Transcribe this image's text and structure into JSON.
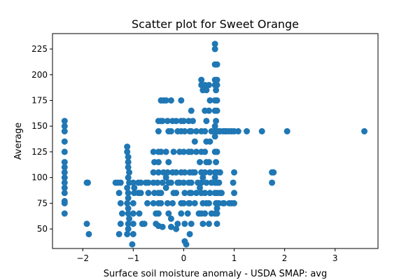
{
  "chart_data": {
    "type": "scatter",
    "title": "Scatter plot for Sweet Orange",
    "xlabel": "Surface soil moisture anomaly  - USDA SMAP: avg",
    "ylabel": "Average",
    "xlim": [
      -2.6,
      3.85
    ],
    "ylim": [
      31,
      240
    ],
    "xticks": [
      -2,
      -1,
      0,
      1,
      2,
      3
    ],
    "yticks": [
      50,
      75,
      100,
      125,
      150,
      175,
      200,
      225
    ],
    "grid": false,
    "marker_color": "#1f77b4",
    "points": [
      [
        -2.36,
        155
      ],
      [
        -2.36,
        150
      ],
      [
        -2.36,
        145
      ],
      [
        -2.36,
        135
      ],
      [
        -2.36,
        125
      ],
      [
        -2.36,
        115
      ],
      [
        -2.36,
        110
      ],
      [
        -2.36,
        105
      ],
      [
        -2.36,
        100
      ],
      [
        -2.36,
        95
      ],
      [
        -2.36,
        90
      ],
      [
        -2.36,
        85
      ],
      [
        -2.36,
        77
      ],
      [
        -2.36,
        75
      ],
      [
        -2.36,
        65
      ],
      [
        -1.92,
        95
      ],
      [
        -1.9,
        95
      ],
      [
        -1.92,
        55
      ],
      [
        -1.88,
        45
      ],
      [
        -1.35,
        95
      ],
      [
        -1.3,
        95
      ],
      [
        -1.25,
        95
      ],
      [
        -1.28,
        85
      ],
      [
        -1.25,
        75
      ],
      [
        -1.22,
        65
      ],
      [
        -1.25,
        55
      ],
      [
        -1.28,
        45
      ],
      [
        -1.12,
        130
      ],
      [
        -1.12,
        125
      ],
      [
        -1.1,
        120
      ],
      [
        -1.1,
        115
      ],
      [
        -1.1,
        110
      ],
      [
        -1.08,
        105
      ],
      [
        -1.1,
        100
      ],
      [
        -1.08,
        95
      ],
      [
        -1.12,
        90
      ],
      [
        -1.1,
        85
      ],
      [
        -1.1,
        80
      ],
      [
        -1.12,
        75
      ],
      [
        -1.1,
        70
      ],
      [
        -1.1,
        65
      ],
      [
        -1.08,
        60
      ],
      [
        -1.1,
        55
      ],
      [
        -1.1,
        50
      ],
      [
        -1.12,
        45
      ],
      [
        -1.0,
        95
      ],
      [
        -0.98,
        90
      ],
      [
        -0.98,
        85
      ],
      [
        -1.0,
        75
      ],
      [
        -1.0,
        65
      ],
      [
        -1.0,
        55
      ],
      [
        -1.0,
        45
      ],
      [
        -1.02,
        35
      ],
      [
        -0.9,
        95
      ],
      [
        -0.85,
        95
      ],
      [
        -0.9,
        85
      ],
      [
        -0.85,
        85
      ],
      [
        -0.88,
        65
      ],
      [
        -0.82,
        55
      ],
      [
        -0.75,
        95
      ],
      [
        -0.7,
        95
      ],
      [
        -0.7,
        85
      ],
      [
        -0.72,
        75
      ],
      [
        -0.78,
        55
      ],
      [
        -0.6,
        125
      ],
      [
        -0.58,
        115
      ],
      [
        -0.6,
        105
      ],
      [
        -0.6,
        95
      ],
      [
        -0.58,
        85
      ],
      [
        -0.6,
        75
      ],
      [
        -0.55,
        65
      ],
      [
        -0.55,
        55
      ],
      [
        -0.5,
        155
      ],
      [
        -0.5,
        145
      ],
      [
        -0.5,
        125
      ],
      [
        -0.5,
        115
      ],
      [
        -0.5,
        105
      ],
      [
        -0.52,
        95
      ],
      [
        -0.5,
        85
      ],
      [
        -0.5,
        75
      ],
      [
        -0.5,
        65
      ],
      [
        -0.5,
        53
      ],
      [
        -0.45,
        175
      ],
      [
        -0.4,
        175
      ],
      [
        -0.45,
        155
      ],
      [
        -0.42,
        155
      ],
      [
        -0.45,
        125
      ],
      [
        -0.4,
        105
      ],
      [
        -0.42,
        95
      ],
      [
        -0.45,
        85
      ],
      [
        -0.45,
        75
      ],
      [
        -0.42,
        52
      ],
      [
        -0.35,
        175
      ],
      [
        -0.32,
        155
      ],
      [
        -0.3,
        145
      ],
      [
        -0.35,
        125
      ],
      [
        -0.3,
        115
      ],
      [
        -0.32,
        105
      ],
      [
        -0.35,
        100
      ],
      [
        -0.3,
        95
      ],
      [
        -0.35,
        90
      ],
      [
        -0.32,
        75
      ],
      [
        -0.3,
        65
      ],
      [
        -0.25,
        175
      ],
      [
        -0.22,
        155
      ],
      [
        -0.25,
        145
      ],
      [
        -0.2,
        125
      ],
      [
        -0.22,
        105
      ],
      [
        -0.25,
        95
      ],
      [
        -0.2,
        85
      ],
      [
        -0.22,
        75
      ],
      [
        -0.25,
        60
      ],
      [
        -0.25,
        52
      ],
      [
        -0.15,
        155
      ],
      [
        -0.12,
        145
      ],
      [
        -0.15,
        105
      ],
      [
        -0.12,
        95
      ],
      [
        -0.15,
        85
      ],
      [
        -0.12,
        55
      ],
      [
        -0.15,
        50
      ],
      [
        -0.05,
        175
      ],
      [
        -0.05,
        155
      ],
      [
        -0.05,
        145
      ],
      [
        -0.08,
        125
      ],
      [
        -0.05,
        105
      ],
      [
        -0.08,
        95
      ],
      [
        -0.05,
        75
      ],
      [
        -0.05,
        65
      ],
      [
        0.0,
        155
      ],
      [
        0.02,
        145
      ],
      [
        0.0,
        125
      ],
      [
        0.02,
        105
      ],
      [
        0.0,
        95
      ],
      [
        0.02,
        85
      ],
      [
        0.0,
        75
      ],
      [
        0.02,
        55
      ],
      [
        0.02,
        38
      ],
      [
        0.05,
        35
      ],
      [
        0.1,
        155
      ],
      [
        0.12,
        145
      ],
      [
        0.1,
        125
      ],
      [
        0.12,
        105
      ],
      [
        0.1,
        95
      ],
      [
        0.12,
        85
      ],
      [
        0.1,
        75
      ],
      [
        0.08,
        65
      ],
      [
        0.15,
        165
      ],
      [
        0.18,
        155
      ],
      [
        0.15,
        145
      ],
      [
        0.15,
        125
      ],
      [
        0.18,
        105
      ],
      [
        0.15,
        95
      ],
      [
        0.15,
        85
      ],
      [
        0.12,
        75
      ],
      [
        0.15,
        55
      ],
      [
        0.12,
        45
      ],
      [
        0.25,
        145
      ],
      [
        0.22,
        135
      ],
      [
        0.25,
        125
      ],
      [
        0.22,
        105
      ],
      [
        0.28,
        95
      ],
      [
        0.25,
        85
      ],
      [
        0.22,
        75
      ],
      [
        0.3,
        65
      ],
      [
        0.35,
        195
      ],
      [
        0.35,
        190
      ],
      [
        0.38,
        185
      ],
      [
        0.35,
        145
      ],
      [
        0.35,
        125
      ],
      [
        0.32,
        115
      ],
      [
        0.35,
        105
      ],
      [
        0.38,
        100
      ],
      [
        0.35,
        95
      ],
      [
        0.32,
        90
      ],
      [
        0.35,
        85
      ],
      [
        0.38,
        75
      ],
      [
        0.35,
        65
      ],
      [
        0.38,
        55
      ],
      [
        0.42,
        190
      ],
      [
        0.45,
        185
      ],
      [
        0.42,
        165
      ],
      [
        0.45,
        155
      ],
      [
        0.42,
        145
      ],
      [
        0.45,
        135
      ],
      [
        0.42,
        125
      ],
      [
        0.45,
        115
      ],
      [
        0.42,
        105
      ],
      [
        0.45,
        95
      ],
      [
        0.42,
        85
      ],
      [
        0.45,
        75
      ],
      [
        0.42,
        65
      ],
      [
        0.5,
        190
      ],
      [
        0.52,
        175
      ],
      [
        0.5,
        165
      ],
      [
        0.55,
        145
      ],
      [
        0.52,
        135
      ],
      [
        0.5,
        115
      ],
      [
        0.52,
        105
      ],
      [
        0.55,
        95
      ],
      [
        0.52,
        85
      ],
      [
        0.5,
        75
      ],
      [
        0.55,
        65
      ],
      [
        0.5,
        55
      ],
      [
        0.62,
        230
      ],
      [
        0.62,
        225
      ],
      [
        0.62,
        210
      ],
      [
        0.62,
        195
      ],
      [
        0.62,
        190
      ],
      [
        0.64,
        185
      ],
      [
        0.62,
        175
      ],
      [
        0.62,
        165
      ],
      [
        0.64,
        155
      ],
      [
        0.62,
        150
      ],
      [
        0.62,
        145
      ],
      [
        0.62,
        140
      ],
      [
        0.62,
        125
      ],
      [
        0.64,
        115
      ],
      [
        0.62,
        105
      ],
      [
        0.62,
        100
      ],
      [
        0.62,
        95
      ],
      [
        0.62,
        85
      ],
      [
        0.64,
        75
      ],
      [
        0.62,
        65
      ],
      [
        0.66,
        210
      ],
      [
        0.66,
        195
      ],
      [
        0.66,
        190
      ],
      [
        0.66,
        175
      ],
      [
        0.66,
        165
      ],
      [
        0.66,
        145
      ],
      [
        0.66,
        125
      ],
      [
        0.66,
        105
      ],
      [
        0.66,
        95
      ],
      [
        0.66,
        85
      ],
      [
        0.66,
        75
      ],
      [
        0.66,
        70
      ],
      [
        0.66,
        65
      ],
      [
        0.66,
        55
      ],
      [
        0.7,
        145
      ],
      [
        0.72,
        145
      ],
      [
        0.72,
        105
      ],
      [
        0.7,
        95
      ],
      [
        0.72,
        85
      ],
      [
        0.75,
        85
      ],
      [
        0.7,
        75
      ],
      [
        0.78,
        145
      ],
      [
        0.82,
        145
      ],
      [
        0.85,
        145
      ],
      [
        0.78,
        75
      ],
      [
        0.8,
        75
      ],
      [
        0.9,
        145
      ],
      [
        0.95,
        145
      ],
      [
        0.9,
        75
      ],
      [
        0.95,
        75
      ],
      [
        1.0,
        145
      ],
      [
        1.0,
        105
      ],
      [
        0.98,
        95
      ],
      [
        1.0,
        85
      ],
      [
        1.0,
        75
      ],
      [
        1.08,
        145
      ],
      [
        1.25,
        145
      ],
      [
        1.55,
        145
      ],
      [
        1.75,
        105
      ],
      [
        1.78,
        105
      ],
      [
        1.75,
        95
      ],
      [
        2.05,
        145
      ],
      [
        3.58,
        145
      ]
    ]
  }
}
